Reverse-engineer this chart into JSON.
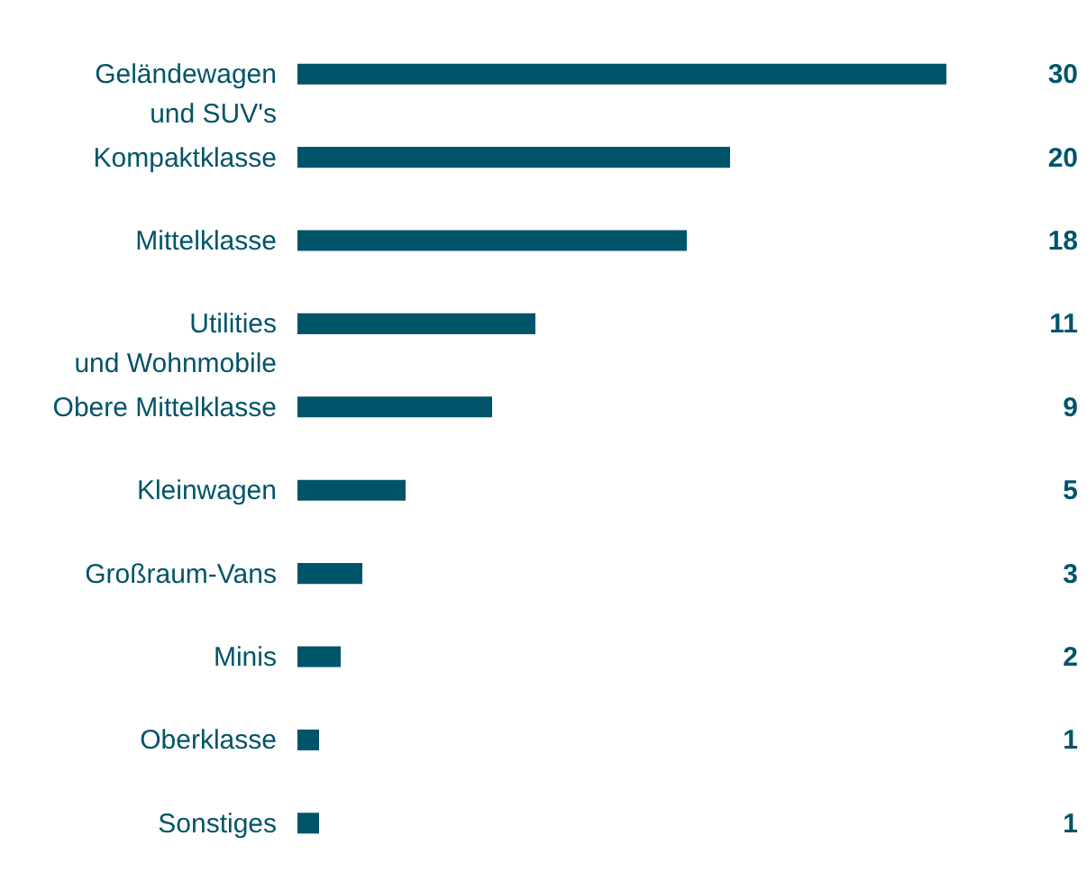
{
  "chart_data": {
    "type": "bar",
    "orientation": "horizontal",
    "data_labels": true,
    "color": "#005469",
    "categories": [
      "Geländewagen\nund SUV's",
      "Kompaktklasse",
      "Mittelklasse",
      "Utilities\nund Wohnmobile",
      "Obere Mittelklasse",
      "Kleinwagen",
      "Großraum-Vans",
      "Minis",
      "Oberklasse",
      "Sonstiges"
    ],
    "values": [
      30,
      20,
      18,
      11,
      9,
      5,
      3,
      2,
      1,
      1
    ]
  }
}
